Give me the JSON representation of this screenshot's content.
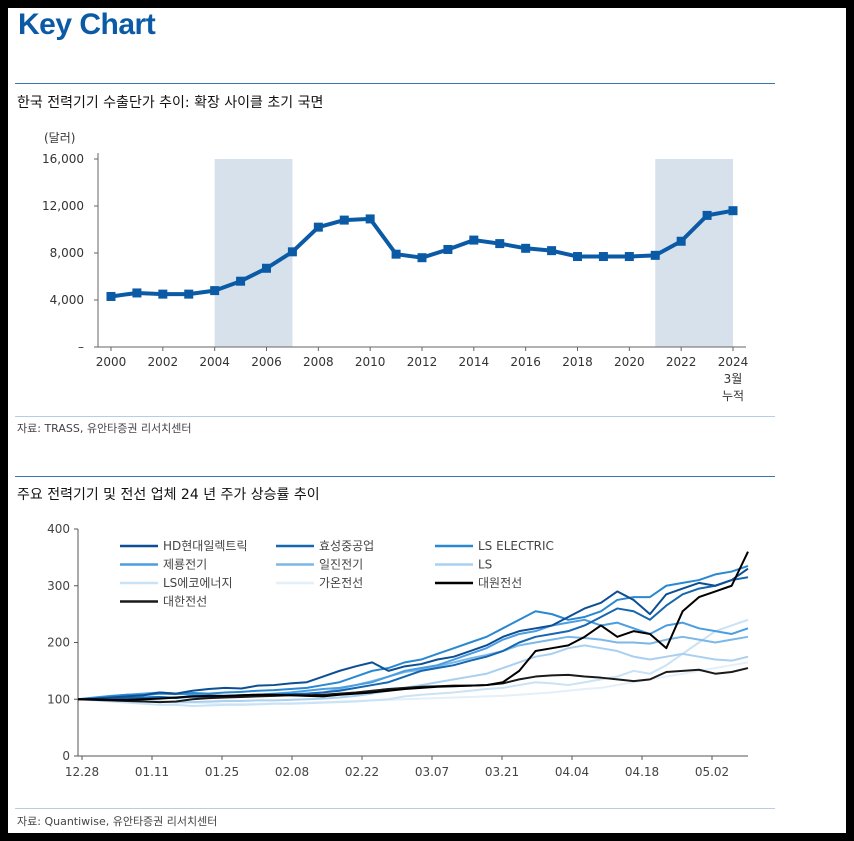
{
  "header": {
    "title": "Key Chart"
  },
  "chart1": {
    "caption": "한국 전력기기 수출단가 추이: 확장 사이클 초기 국면",
    "unit_label": "(달러)",
    "source": "자료: TRASS, 유안타증권 리서치센터"
  },
  "chart2": {
    "caption": "주요 전력기기 및 전선 업체 24 년 주가 상승률 추이",
    "source": "자료: Quantiwise, 유안타증권 리서치센터"
  },
  "colors": {
    "accent": "#0b5aa6",
    "line1": "#0b5aa6",
    "shade": "#d6e1ec",
    "rule": "#3a74b8"
  },
  "chart_data": [
    {
      "type": "line",
      "title": "한국 전력기기 수출단가 추이: 확장 사이클 초기 국면",
      "ylabel": "(달러)",
      "ylim": [
        0,
        16000
      ],
      "yticks": [
        0,
        4000,
        8000,
        12000,
        16000
      ],
      "ytick_labels": [
        "–",
        "4,000",
        "8,000",
        "12,000",
        "16,000"
      ],
      "x": [
        2000,
        2001,
        2002,
        2003,
        2004,
        2005,
        2006,
        2007,
        2008,
        2009,
        2010,
        2011,
        2012,
        2013,
        2014,
        2015,
        2016,
        2017,
        2018,
        2019,
        2020,
        2021,
        2022,
        2023,
        2024
      ],
      "xtick_labels": [
        "2000",
        "2002",
        "2004",
        "2006",
        "2008",
        "2010",
        "2012",
        "2014",
        "2016",
        "2018",
        "2020",
        "2022",
        "2024\n3월\n누적"
      ],
      "series": [
        {
          "values": [
            4300,
            4600,
            4500,
            4500,
            4800,
            5600,
            6700,
            8100,
            10200,
            10800,
            10900,
            7900,
            7600,
            8300,
            9100,
            8800,
            8400,
            8200,
            7700,
            7700,
            7700,
            7800,
            9000,
            11200,
            11600
          ]
        }
      ],
      "shaded_ranges": [
        [
          2004,
          2007
        ],
        [
          2021,
          2024
        ]
      ],
      "grid": false
    },
    {
      "type": "line",
      "title": "주요 전력기기 및 전선 업체 24 년 주가 상승률 추이",
      "ylim": [
        0,
        400
      ],
      "yticks": [
        0,
        100,
        200,
        300,
        400
      ],
      "xtick_labels": [
        "12.28",
        "01.11",
        "01.25",
        "02.08",
        "02.22",
        "03.07",
        "03.21",
        "04.04",
        "04.18",
        "05.02"
      ],
      "legend": "top-left",
      "grid": false,
      "series": [
        {
          "name": "HD현대일렉트릭",
          "color": "#0d4f94",
          "values": [
            100,
            101,
            103,
            105,
            107,
            112,
            110,
            115,
            118,
            120,
            119,
            124,
            125,
            128,
            130,
            140,
            150,
            158,
            165,
            150,
            158,
            162,
            170,
            175,
            185,
            195,
            210,
            220,
            225,
            230,
            245,
            260,
            270,
            290,
            275,
            250,
            285,
            295,
            305,
            300,
            310,
            330
          ]
        },
        {
          "name": "효성중공업",
          "color": "#1666b0",
          "values": [
            100,
            100,
            101,
            102,
            103,
            104,
            102,
            105,
            104,
            106,
            107,
            108,
            108,
            109,
            110,
            112,
            115,
            120,
            125,
            130,
            140,
            150,
            155,
            160,
            168,
            175,
            185,
            200,
            210,
            215,
            220,
            230,
            245,
            260,
            255,
            240,
            265,
            285,
            295,
            300,
            310,
            315
          ]
        },
        {
          "name": "LS ELECTRIC",
          "color": "#2a88d0",
          "values": [
            100,
            102,
            105,
            108,
            107,
            110,
            109,
            111,
            110,
            112,
            113,
            115,
            116,
            118,
            120,
            125,
            130,
            140,
            150,
            155,
            165,
            170,
            180,
            190,
            200,
            210,
            225,
            240,
            255,
            250,
            240,
            245,
            255,
            275,
            280,
            280,
            300,
            305,
            310,
            320,
            325,
            335
          ]
        },
        {
          "name": "제룡전기",
          "color": "#4a9de0",
          "values": [
            100,
            103,
            106,
            108,
            110,
            112,
            110,
            108,
            107,
            106,
            105,
            108,
            110,
            112,
            115,
            118,
            120,
            125,
            130,
            140,
            150,
            155,
            160,
            170,
            180,
            190,
            205,
            215,
            220,
            230,
            235,
            240,
            230,
            235,
            225,
            215,
            230,
            235,
            225,
            220,
            215,
            225
          ]
        },
        {
          "name": "일진전기",
          "color": "#7bb8e8",
          "values": [
            100,
            101,
            102,
            103,
            103,
            104,
            103,
            104,
            104,
            105,
            106,
            107,
            108,
            108,
            110,
            112,
            118,
            125,
            132,
            140,
            148,
            152,
            158,
            165,
            172,
            178,
            185,
            195,
            200,
            205,
            210,
            208,
            205,
            200,
            200,
            198,
            205,
            210,
            205,
            200,
            205,
            210
          ]
        },
        {
          "name": "LS",
          "color": "#a9d0f0",
          "values": [
            100,
            99,
            98,
            97,
            97,
            96,
            95,
            95,
            96,
            97,
            97,
            98,
            98,
            99,
            100,
            101,
            103,
            106,
            110,
            115,
            120,
            125,
            130,
            135,
            140,
            145,
            155,
            165,
            175,
            180,
            190,
            195,
            190,
            185,
            175,
            170,
            175,
            180,
            175,
            170,
            168,
            175
          ]
        },
        {
          "name": "LS에코에너지",
          "color": "#c9e2f5",
          "values": [
            100,
            98,
            96,
            94,
            92,
            90,
            90,
            88,
            89,
            90,
            90,
            91,
            92,
            92,
            93,
            94,
            95,
            96,
            98,
            100,
            105,
            108,
            110,
            112,
            115,
            118,
            120,
            125,
            130,
            128,
            125,
            130,
            135,
            140,
            150,
            145,
            160,
            180,
            200,
            220,
            230,
            240
          ]
        },
        {
          "name": "가온전선",
          "color": "#e3eff9",
          "values": [
            100,
            99,
            98,
            97,
            96,
            95,
            94,
            94,
            93,
            92,
            92,
            92,
            93,
            93,
            94,
            95,
            96,
            97,
            98,
            99,
            100,
            101,
            102,
            103,
            104,
            105,
            106,
            108,
            110,
            112,
            115,
            118,
            120,
            125,
            130,
            135,
            140,
            145,
            150,
            155,
            160,
            165
          ]
        },
        {
          "name": "대원전선",
          "color": "#000000",
          "values": [
            100,
            100,
            99,
            99,
            100,
            101,
            103,
            105,
            106,
            106,
            107,
            108,
            108,
            107,
            106,
            105,
            108,
            110,
            112,
            115,
            118,
            120,
            122,
            123,
            124,
            125,
            130,
            150,
            185,
            190,
            195,
            210,
            230,
            210,
            220,
            215,
            190,
            255,
            280,
            290,
            300,
            360
          ]
        },
        {
          "name": "대한전선",
          "color": "#1a1a1a",
          "values": [
            100,
            99,
            98,
            97,
            96,
            95,
            96,
            100,
            102,
            103,
            104,
            105,
            106,
            107,
            107,
            108,
            110,
            112,
            115,
            118,
            120,
            122,
            123,
            124,
            124,
            125,
            128,
            135,
            140,
            142,
            143,
            140,
            138,
            135,
            132,
            135,
            148,
            150,
            152,
            145,
            148,
            155
          ]
        }
      ]
    }
  ]
}
